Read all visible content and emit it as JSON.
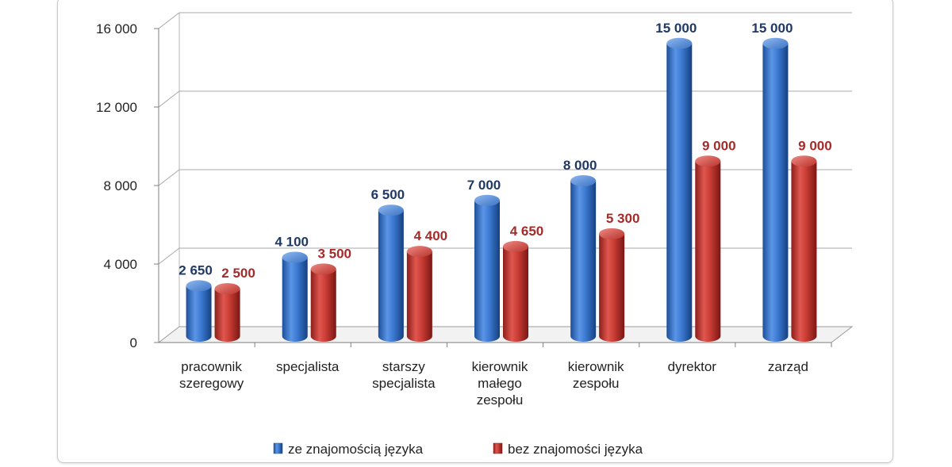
{
  "chart_data": {
    "type": "bar",
    "title": "",
    "xlabel": "",
    "ylabel": "",
    "categories": [
      [
        "pracownik",
        "szeregowy"
      ],
      [
        "specjalista"
      ],
      [
        "starszy",
        "specjalista"
      ],
      [
        "kierownik",
        "małego",
        "zespołu"
      ],
      [
        "kierownik",
        "zespołu"
      ],
      [
        "dyrektor"
      ],
      [
        "zarząd"
      ]
    ],
    "series": [
      {
        "name": "ze znajomością języka",
        "color": "#2f6fc8",
        "label_color": "#1f3864",
        "values": [
          2650,
          4100,
          6500,
          7000,
          8000,
          15000,
          15000
        ],
        "labels": [
          "2 650",
          "4 100",
          "6 500",
          "7 000",
          "8 000",
          "15 000",
          "15 000"
        ]
      },
      {
        "name": "bez znajomości języka",
        "color": "#c0302b",
        "label_color": "#a52a2a",
        "values": [
          2500,
          3500,
          4400,
          4650,
          5300,
          9000,
          9000
        ],
        "labels": [
          "2 500",
          "3 500",
          "4 400",
          "4 650",
          "5 300",
          "9 000",
          "9 000"
        ]
      }
    ],
    "yticks": [
      0,
      4000,
      8000,
      12000,
      16000
    ],
    "ytick_labels": [
      "0",
      "4 000",
      "8 000",
      "12 000",
      "16 000"
    ],
    "ylim": [
      0,
      16000
    ],
    "grid": true,
    "legend_position": "bottom",
    "style": "3d-cylinder"
  }
}
